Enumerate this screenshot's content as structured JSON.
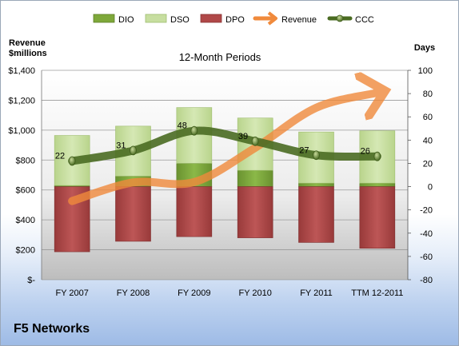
{
  "company": "F5 Networks",
  "chart_data": {
    "type": "bar",
    "title": "12-Month Periods",
    "left_axis_label_line1": "Revenue",
    "left_axis_label_line2": "$millions",
    "right_axis_label": "Days",
    "categories": [
      "FY 2007",
      "FY 2008",
      "FY 2009",
      "FY 2010",
      "FY 2011",
      "TTM 12-2011"
    ],
    "left_ylim": [
      0,
      1400
    ],
    "left_ticks": [
      "$-",
      "$200",
      "$400",
      "$600",
      "$800",
      "$1,000",
      "$1,200",
      "$1,400"
    ],
    "right_ylim": [
      -80,
      100
    ],
    "right_ticks": [
      "-80",
      "-60",
      "-40",
      "-20",
      "0",
      "20",
      "40",
      "60",
      "80",
      "100"
    ],
    "legend": [
      "DIO",
      "DSO",
      "DPO",
      "Revenue",
      "CCC"
    ],
    "legend_position": "top",
    "colors": {
      "DIO": "#7ea83a",
      "DSO": "#c7dea0",
      "DPO": "#b04848",
      "Revenue": "#f08a3c",
      "CCC": "#4a6b22"
    },
    "series": [
      {
        "name": "DIO",
        "axis": "right",
        "values": [
          1,
          9,
          20,
          14,
          3,
          3
        ]
      },
      {
        "name": "DSO",
        "axis": "right",
        "values": [
          43,
          43,
          48,
          45,
          44,
          45
        ]
      },
      {
        "name": "DPO",
        "axis": "right",
        "values": [
          -56,
          -47,
          -43,
          -44,
          -48,
          -53
        ]
      },
      {
        "name": "CCC",
        "axis": "right",
        "values": [
          22,
          31,
          48,
          39,
          27,
          26
        ]
      },
      {
        "name": "Revenue",
        "axis": "left",
        "values": [
          526,
          650,
          653,
          882,
          1150,
          1250
        ]
      }
    ],
    "data_labels": [
      "22",
      "31",
      "48",
      "39",
      "27",
      "26"
    ],
    "grid": true
  }
}
